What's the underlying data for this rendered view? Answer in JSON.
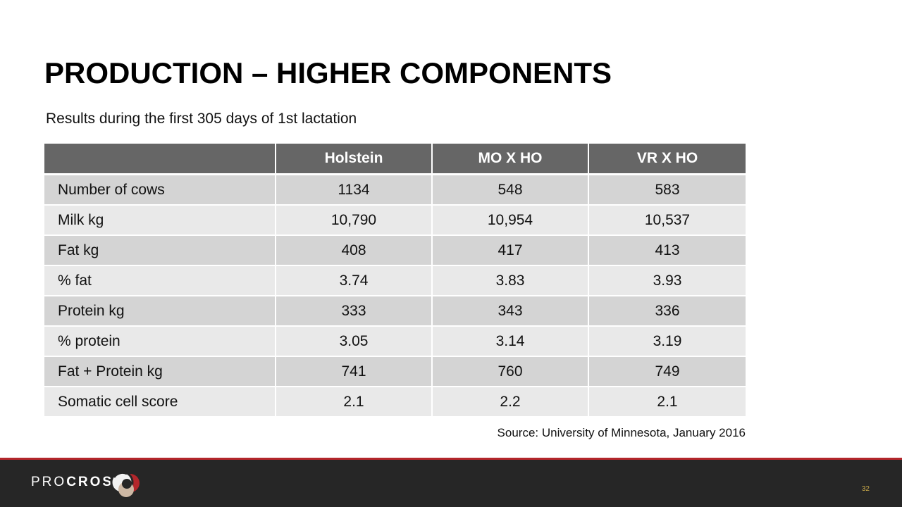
{
  "slide": {
    "title": "PRODUCTION – HIGHER COMPONENTS",
    "subtitle": "Results during the first 305 days of 1st lactation"
  },
  "table": {
    "headers": [
      "",
      "Holstein",
      "MO X HO",
      "VR X HO"
    ],
    "rows": [
      {
        "label": "Number of cows",
        "values": [
          "1134",
          "548",
          "583"
        ]
      },
      {
        "label": "Milk kg",
        "values": [
          "10,790",
          "10,954",
          "10,537"
        ]
      },
      {
        "label": "Fat kg",
        "values": [
          "408",
          "417",
          "413"
        ]
      },
      {
        "label": "% fat",
        "values": [
          "3.74",
          "3.83",
          "3.93"
        ]
      },
      {
        "label": "Protein kg",
        "values": [
          "333",
          "343",
          "336"
        ]
      },
      {
        "label": "% protein",
        "values": [
          "3.05",
          "3.14",
          "3.19"
        ]
      },
      {
        "label": "Fat + Protein kg",
        "values": [
          "741",
          "760",
          "749"
        ]
      },
      {
        "label": "Somatic cell score",
        "values": [
          "2.1",
          "2.2",
          "2.1"
        ]
      }
    ]
  },
  "source": "Source: University of Minnesota, January 2016",
  "footer": {
    "brand_light": "PRO",
    "brand_bold": "CROSS",
    "logo_icon": "procross-logo-icon",
    "page_number": "32"
  },
  "colors": {
    "header_bg": "#666666",
    "row_dark": "#d4d4d4",
    "row_light": "#e9e9e9",
    "footer_bg": "#262626",
    "accent_red": "#b3262b",
    "page_number": "#c9a94a"
  }
}
